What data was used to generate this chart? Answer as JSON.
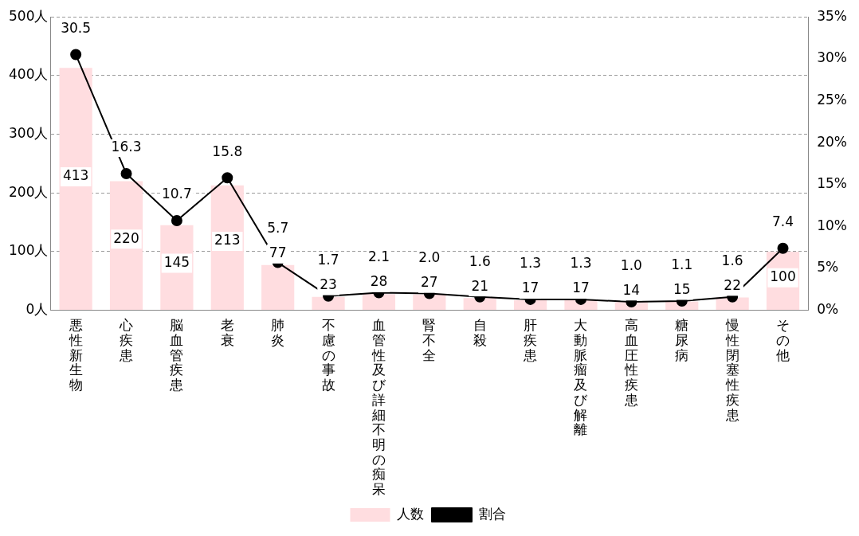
{
  "chart_data": {
    "type": "bar",
    "categories": [
      "悪性新生物",
      "心疾患",
      "脳血管疾患",
      "老衰",
      "肺炎",
      "不慮の事故",
      "血管性及び詳細不明の痴呆",
      "腎不全",
      "自殺",
      "肝疾患",
      "大動脈瘤及び解離",
      "高血圧性疾患",
      "糖尿病",
      "慢性閉塞性疾患",
      "その他"
    ],
    "series": [
      {
        "name": "人数",
        "color": "#ffdde0",
        "values": [
          413,
          220,
          145,
          213,
          77,
          23,
          28,
          27,
          21,
          17,
          17,
          14,
          15,
          22,
          100
        ]
      },
      {
        "name": "割合",
        "type": "line",
        "axis": "y2",
        "color": "#000000",
        "values": [
          30.5,
          16.3,
          10.7,
          15.8,
          5.7,
          1.7,
          2.1,
          2.0,
          1.6,
          1.3,
          1.3,
          1.0,
          1.1,
          1.6,
          7.4
        ],
        "value_labels": [
          "30.5",
          "16.3",
          "10.7",
          "15.8",
          "5.7",
          "1.7",
          "2.1",
          "2.0",
          "1.6",
          "1.3",
          "1.3",
          "1.0",
          "1.1",
          "1.6",
          "7.4"
        ]
      }
    ],
    "ylim": [
      0,
      500
    ],
    "yticks": [
      {
        "value": 0,
        "label": "0人"
      },
      {
        "value": 100,
        "label": "100人"
      },
      {
        "value": 200,
        "label": "200人"
      },
      {
        "value": 300,
        "label": "300人"
      },
      {
        "value": 400,
        "label": "400人"
      },
      {
        "value": 500,
        "label": "500人"
      }
    ],
    "y2lim": [
      0,
      35
    ],
    "y2ticks": [
      {
        "value": 0,
        "label": "0%"
      },
      {
        "value": 5,
        "label": "5%"
      },
      {
        "value": 10,
        "label": "10%"
      },
      {
        "value": 15,
        "label": "15%"
      },
      {
        "value": 20,
        "label": "20%"
      },
      {
        "value": 25,
        "label": "25%"
      },
      {
        "value": 30,
        "label": "30%"
      },
      {
        "value": 35,
        "label": "35%"
      }
    ],
    "grid": "y",
    "legend": "bottom",
    "marker": "circle",
    "data_labels": true
  }
}
